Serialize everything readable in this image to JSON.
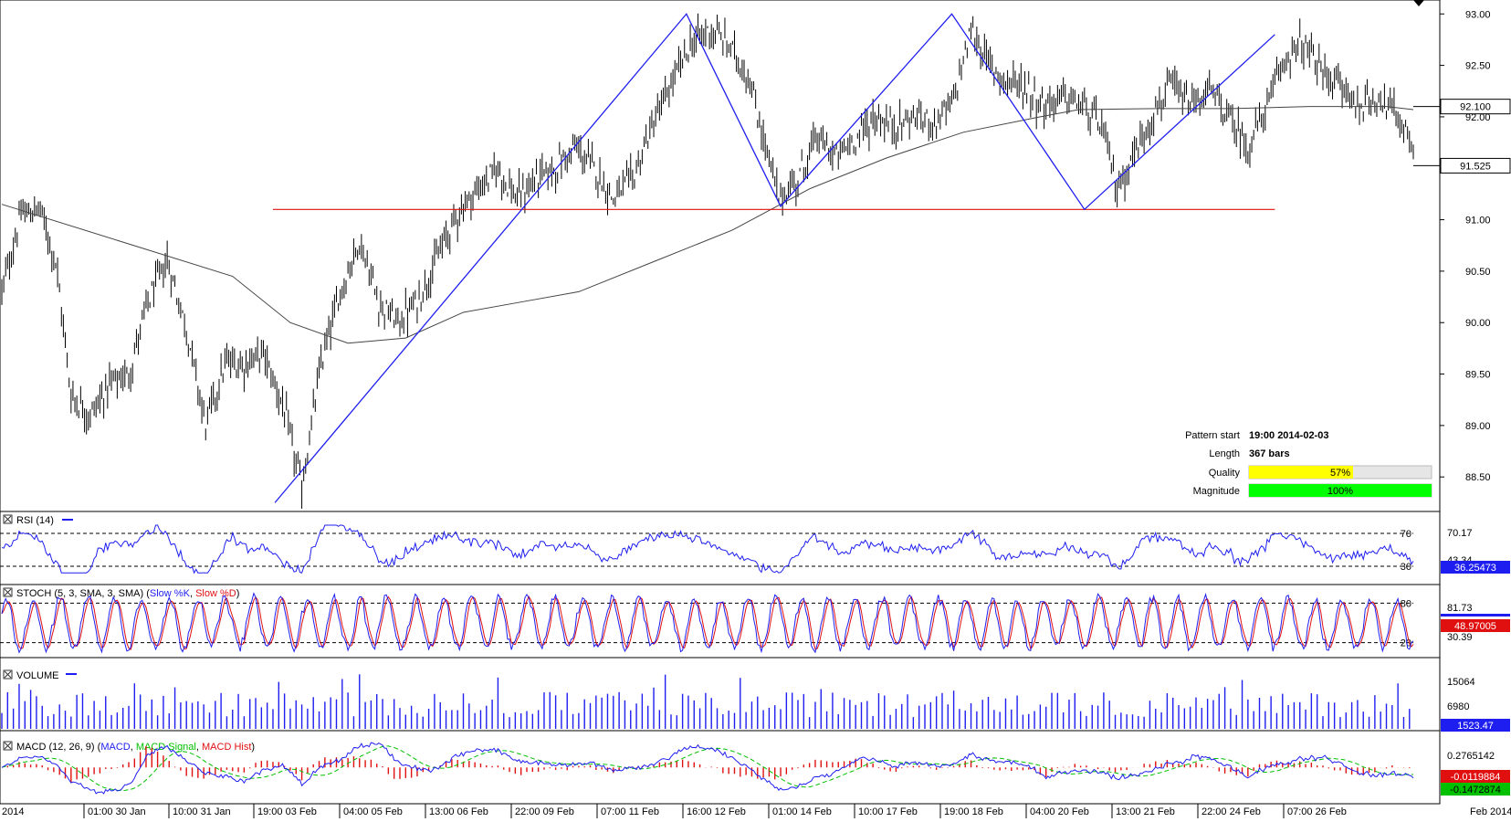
{
  "chart_data": {
    "type": "ohlc",
    "instrument_last": "91.525",
    "price_axis": {
      "ticks": [
        "93.00",
        "92.50",
        "92.00",
        "91.50",
        "91.00",
        "90.50",
        "90.00",
        "89.50",
        "89.00",
        "88.50"
      ],
      "ylim": [
        88.2,
        93.1
      ],
      "badges": [
        {
          "value": 92.1,
          "label": "92.100",
          "bg": "#ffffff",
          "fg": "#000000"
        },
        {
          "value": 91.525,
          "label": "91.525",
          "bg": "#ffffff",
          "fg": "#000000"
        }
      ]
    },
    "x_axis": {
      "labels": [
        "2014",
        "01:00 30 Jan",
        "10:00 31 Jan",
        "19:00 03 Feb",
        "04:00 05 Feb",
        "13:00 06 Feb",
        "22:00 09 Feb",
        "07:00 11 Feb",
        "16:00 12 Feb",
        "01:00 14 Feb",
        "10:00 17 Feb",
        "19:00 18 Feb",
        "04:00 20 Feb",
        "13:00 21 Feb",
        "22:00 24 Feb",
        "07:00 26 Feb",
        "Feb 2014"
      ]
    },
    "price_anchors": [
      [
        0,
        90.3
      ],
      [
        10,
        91.05
      ],
      [
        20,
        91.1
      ],
      [
        28,
        90.6
      ],
      [
        36,
        89.3
      ],
      [
        46,
        89.1
      ],
      [
        56,
        89.4
      ],
      [
        66,
        89.5
      ],
      [
        76,
        90.2
      ],
      [
        86,
        90.6
      ],
      [
        96,
        89.95
      ],
      [
        106,
        89.0
      ],
      [
        116,
        89.6
      ],
      [
        126,
        89.6
      ],
      [
        136,
        89.7
      ],
      [
        146,
        89.2
      ],
      [
        156,
        88.4
      ],
      [
        166,
        89.6
      ],
      [
        176,
        90.3
      ],
      [
        186,
        90.8
      ],
      [
        196,
        90.2
      ],
      [
        206,
        90.0
      ],
      [
        216,
        90.2
      ],
      [
        228,
        90.7
      ],
      [
        238,
        91.1
      ],
      [
        248,
        91.3
      ],
      [
        258,
        91.5
      ],
      [
        268,
        91.2
      ],
      [
        278,
        91.4
      ],
      [
        288,
        91.5
      ],
      [
        298,
        91.7
      ],
      [
        308,
        91.5
      ],
      [
        318,
        91.2
      ],
      [
        328,
        91.4
      ],
      [
        338,
        91.9
      ],
      [
        348,
        92.3
      ],
      [
        358,
        92.7
      ],
      [
        368,
        92.85
      ],
      [
        378,
        92.7
      ],
      [
        388,
        92.4
      ],
      [
        396,
        91.8
      ],
      [
        404,
        91.2
      ],
      [
        414,
        91.4
      ],
      [
        424,
        91.8
      ],
      [
        434,
        91.6
      ],
      [
        444,
        91.8
      ],
      [
        454,
        92.0
      ],
      [
        464,
        91.9
      ],
      [
        474,
        92.0
      ],
      [
        484,
        91.95
      ],
      [
        494,
        92.1
      ],
      [
        504,
        92.85
      ],
      [
        512,
        92.55
      ],
      [
        522,
        92.35
      ],
      [
        532,
        92.3
      ],
      [
        542,
        92.1
      ],
      [
        552,
        92.2
      ],
      [
        562,
        92.1
      ],
      [
        572,
        91.9
      ],
      [
        580,
        91.3
      ],
      [
        588,
        91.6
      ],
      [
        598,
        92.0
      ],
      [
        608,
        92.3
      ],
      [
        618,
        92.1
      ],
      [
        628,
        92.25
      ],
      [
        638,
        92.0
      ],
      [
        648,
        91.7
      ],
      [
        658,
        92.1
      ],
      [
        668,
        92.6
      ],
      [
        676,
        92.7
      ],
      [
        686,
        92.45
      ],
      [
        696,
        92.3
      ],
      [
        706,
        92.1
      ],
      [
        716,
        92.2
      ],
      [
        726,
        92.0
      ],
      [
        734,
        91.7
      ]
    ],
    "sma200": [
      [
        0,
        91.15
      ],
      [
        60,
        90.8
      ],
      [
        120,
        90.45
      ],
      [
        150,
        90.0
      ],
      [
        180,
        89.8
      ],
      [
        210,
        89.85
      ],
      [
        240,
        90.1
      ],
      [
        270,
        90.2
      ],
      [
        300,
        90.3
      ],
      [
        340,
        90.6
      ],
      [
        380,
        90.9
      ],
      [
        400,
        91.1
      ],
      [
        420,
        91.3
      ],
      [
        460,
        91.6
      ],
      [
        500,
        91.85
      ],
      [
        540,
        92.0
      ],
      [
        560,
        92.07
      ],
      [
        600,
        92.08
      ],
      [
        640,
        92.08
      ],
      [
        680,
        92.1
      ],
      [
        720,
        92.1
      ],
      [
        734,
        92.07
      ]
    ],
    "pattern_lines": [
      {
        "name": "zigzag",
        "color": "#1e1ef0",
        "points": [
          [
            142,
            88.25
          ],
          [
            356,
            93.0
          ],
          [
            405,
            91.13
          ],
          [
            494,
            93.0
          ],
          [
            563,
            91.1
          ],
          [
            662,
            92.8
          ]
        ]
      },
      {
        "name": "neckline",
        "color": "#e01010",
        "points": [
          [
            141,
            91.1
          ],
          [
            662,
            91.1
          ]
        ]
      }
    ],
    "info_box": {
      "rows": [
        {
          "label": "Pattern start",
          "value": "19:00 2014-02-03"
        },
        {
          "label": "Length",
          "value": "367 bars"
        },
        {
          "label": "Quality",
          "value": "57%",
          "fill": 0.57,
          "color": "#ffff00"
        },
        {
          "label": "Magnitude",
          "value": "100%",
          "fill": 1.0,
          "color": "#00ff00"
        }
      ]
    },
    "indicators": {
      "rsi": {
        "title": "RSI (14)",
        "color": "#1e1ef0",
        "levels": [
          "70",
          "30"
        ],
        "axis_labels": [
          "70.17",
          "43.34"
        ],
        "current": "36.25473",
        "range": [
          10,
          90
        ]
      },
      "stoch": {
        "title_prefix": "STOCH (5, 3, SMA, 3, SMA)",
        "k_label": "Slow %K",
        "d_label": "Slow %D",
        "k_color": "#1e1ef0",
        "d_color": "#e01010",
        "levels": [
          "80",
          "20"
        ],
        "axis_labels": [
          "81.73",
          "30.39"
        ],
        "current_k": "48.97005",
        "current_d": "48.97005",
        "range": [
          0,
          100
        ]
      },
      "volume": {
        "title": "VOLUME",
        "color": "#1e1ef0",
        "axis_labels": [
          "15064",
          "6980"
        ],
        "current": "1523.47",
        "max": 16500
      },
      "macd": {
        "title_prefix": "MACD (12, 26, 9)",
        "macd_label": "MACD",
        "signal_label": "MACD Signal",
        "hist_label": "MACD Hist",
        "macd_color": "#1e1ef0",
        "signal_color": "#00c000",
        "hist_color": "#e01010",
        "axis_labels": [
          "0.2765142"
        ],
        "current_hist": "-0.0119884",
        "current_signal": "-0.1472874",
        "range": [
          -0.55,
          0.5
        ]
      }
    }
  }
}
